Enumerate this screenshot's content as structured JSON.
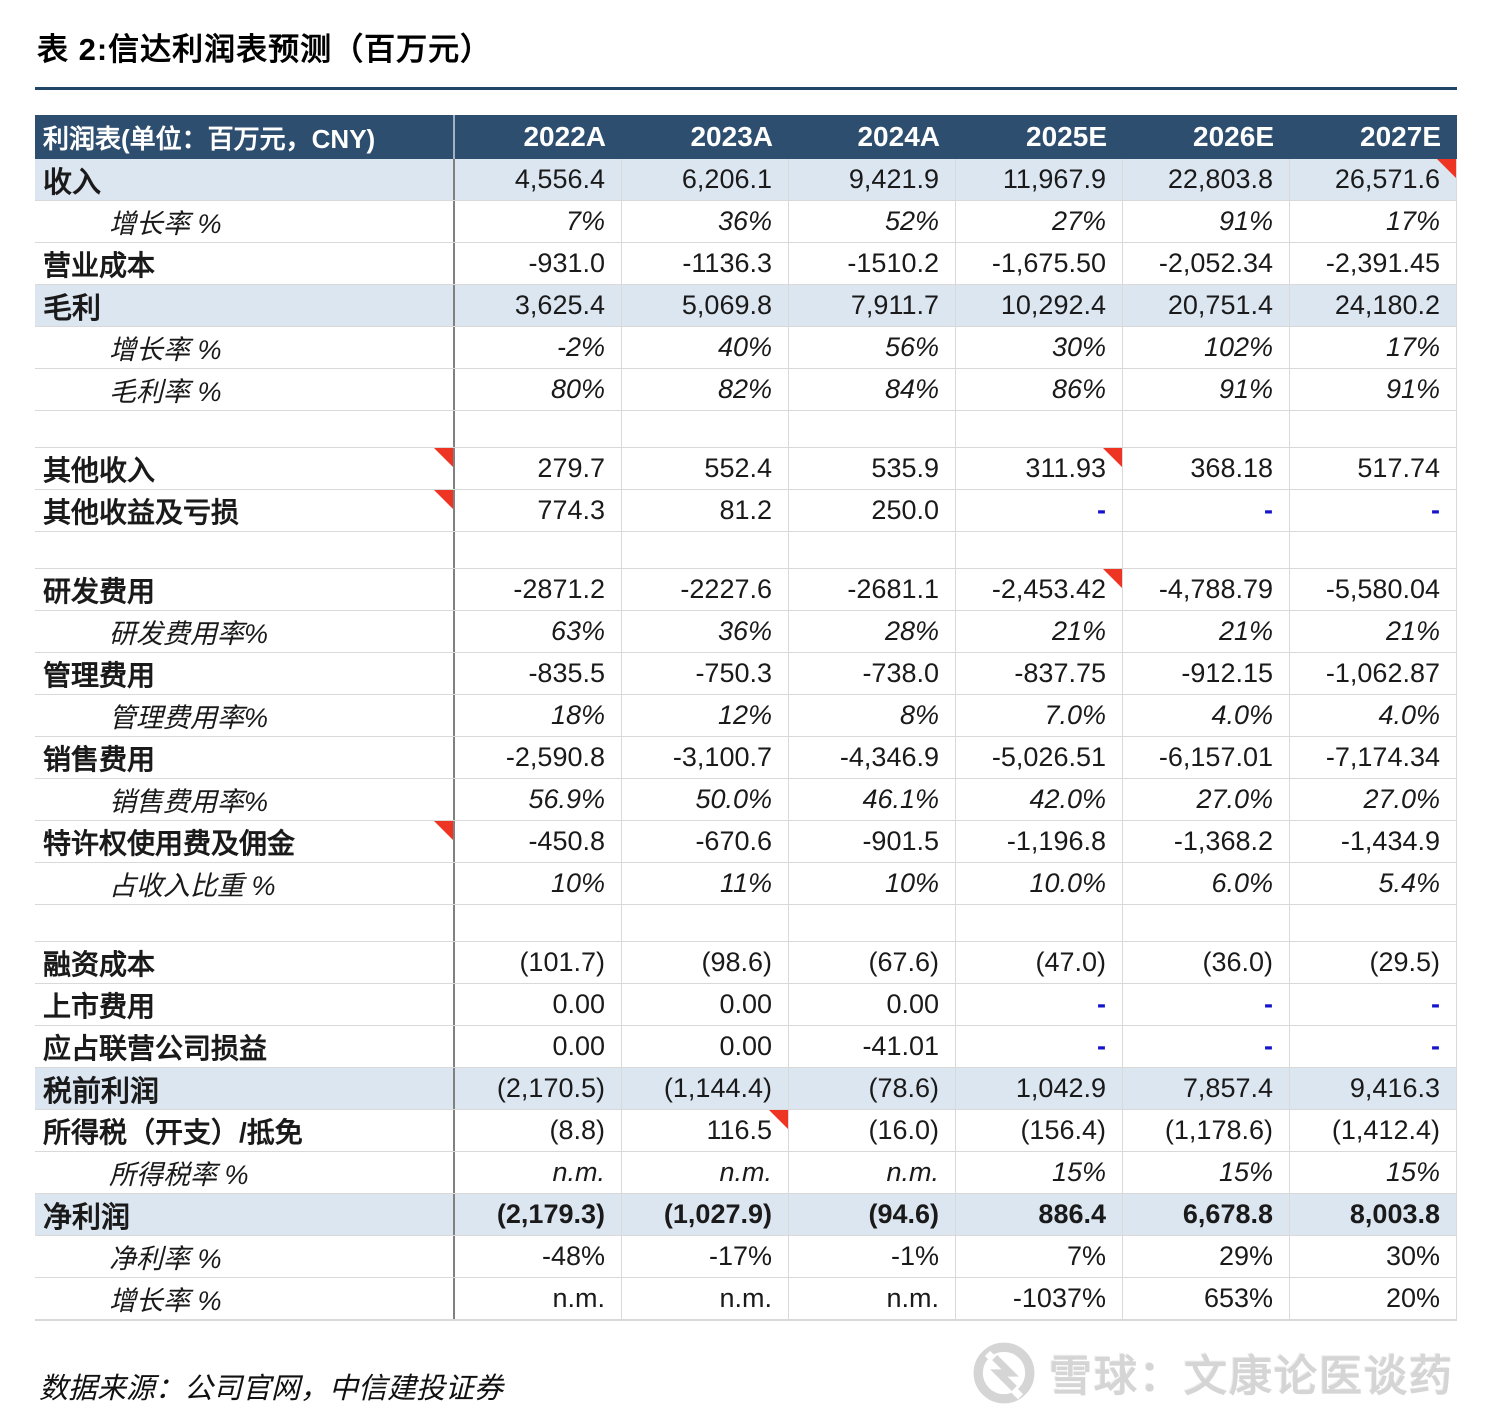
{
  "title": "表 2:信达利润表预测（百万元）",
  "source": "数据来源：公司官网，中信建投证券",
  "watermark": {
    "logo": "xueqiu-snowball-icon",
    "text": "雪球：文康论医谈药"
  },
  "colors": {
    "header-bg": "#2d4e6e",
    "highlight-bg": "#dce6f1",
    "grid-line": "#d9d9d9",
    "divider-line": "#808080",
    "title-rule": "#1f4666",
    "corner-red": "#ee3524",
    "dash-blue": "#1414cc",
    "text": "#1a1a1a"
  },
  "table": {
    "header": [
      "利润表(单位：百万元，CNY)",
      "2022A",
      "2023A",
      "2024A",
      "2025E",
      "2026E",
      "2027E"
    ],
    "rows": [
      {
        "label": "收入",
        "type": "highlight",
        "values": [
          "4,556.4",
          "6,206.1",
          "9,421.9",
          "11,967.9",
          "22,803.8",
          "26,571.6"
        ],
        "corner_cols": [
          5
        ]
      },
      {
        "label": "增长率 %",
        "type": "ratio",
        "value_italic": true,
        "values": [
          "7%",
          "36%",
          "52%",
          "27%",
          "91%",
          "17%"
        ]
      },
      {
        "label": "营业成本",
        "type": "main",
        "values": [
          "-931.0",
          "-1136.3",
          "-1510.2",
          "-1,675.50",
          "-2,052.34",
          "-2,391.45"
        ]
      },
      {
        "label": "毛利",
        "type": "highlight",
        "values": [
          "3,625.4",
          "5,069.8",
          "7,911.7",
          "10,292.4",
          "20,751.4",
          "24,180.2"
        ]
      },
      {
        "label": "增长率 %",
        "type": "ratio",
        "value_italic": true,
        "values": [
          "-2%",
          "40%",
          "56%",
          "30%",
          "102%",
          "17%"
        ]
      },
      {
        "label": "毛利率 %",
        "type": "ratio",
        "value_italic": true,
        "values": [
          "80%",
          "82%",
          "84%",
          "86%",
          "91%",
          "91%"
        ]
      },
      {
        "label": "",
        "type": "spacer",
        "values": [
          "",
          "",
          "",
          "",
          "",
          ""
        ]
      },
      {
        "label": "其他收入",
        "type": "main",
        "label_corner": true,
        "values": [
          "279.7",
          "552.4",
          "535.9",
          "311.93",
          "368.18",
          "517.74"
        ],
        "corner_cols": [
          3
        ]
      },
      {
        "label": "其他收益及亏损",
        "type": "main",
        "label_corner": true,
        "values": [
          "774.3",
          "81.2",
          "250.0",
          "-",
          "-",
          "-"
        ]
      },
      {
        "label": "",
        "type": "spacer",
        "values": [
          "",
          "",
          "",
          "",
          "",
          ""
        ]
      },
      {
        "label": "研发费用",
        "type": "main",
        "values": [
          "-2871.2",
          "-2227.6",
          "-2681.1",
          "-2,453.42",
          "-4,788.79",
          "-5,580.04"
        ],
        "corner_cols": [
          3
        ]
      },
      {
        "label": "研发费用率%",
        "type": "ratio",
        "value_italic": true,
        "values": [
          "63%",
          "36%",
          "28%",
          "21%",
          "21%",
          "21%"
        ]
      },
      {
        "label": "管理费用",
        "type": "main",
        "values": [
          "-835.5",
          "-750.3",
          "-738.0",
          "-837.75",
          "-912.15",
          "-1,062.87"
        ]
      },
      {
        "label": "管理费用率%",
        "type": "ratio",
        "value_italic": true,
        "values": [
          "18%",
          "12%",
          "8%",
          "7.0%",
          "4.0%",
          "4.0%"
        ]
      },
      {
        "label": "销售费用",
        "type": "main",
        "values": [
          "-2,590.8",
          "-3,100.7",
          "-4,346.9",
          "-5,026.51",
          "-6,157.01",
          "-7,174.34"
        ]
      },
      {
        "label": "销售费用率%",
        "type": "ratio",
        "value_italic": true,
        "values": [
          "56.9%",
          "50.0%",
          "46.1%",
          "42.0%",
          "27.0%",
          "27.0%"
        ]
      },
      {
        "label": "特许权使用费及佣金",
        "type": "main",
        "label_corner": true,
        "values": [
          "-450.8",
          "-670.6",
          "-901.5",
          "-1,196.8",
          "-1,368.2",
          "-1,434.9"
        ]
      },
      {
        "label": "占收入比重 %",
        "type": "ratio",
        "value_italic": true,
        "values": [
          "10%",
          "11%",
          "10%",
          "10.0%",
          "6.0%",
          "5.4%"
        ]
      },
      {
        "label": "",
        "type": "spacer",
        "values": [
          "",
          "",
          "",
          "",
          "",
          ""
        ]
      },
      {
        "label": "融资成本",
        "type": "main",
        "values": [
          "(101.7)",
          "(98.6)",
          "(67.6)",
          "(47.0)",
          "(36.0)",
          "(29.5)"
        ]
      },
      {
        "label": "上市费用",
        "type": "main",
        "values": [
          "0.00",
          "0.00",
          "0.00",
          "-",
          "-",
          "-"
        ]
      },
      {
        "label": "应占联营公司损益",
        "type": "main",
        "values": [
          "0.00",
          "0.00",
          "-41.01",
          "-",
          "-",
          "-"
        ]
      },
      {
        "label": "税前利润",
        "type": "highlight",
        "values": [
          "(2,170.5)",
          "(1,144.4)",
          "(78.6)",
          "1,042.9",
          "7,857.4",
          "9,416.3"
        ]
      },
      {
        "label": "所得税（开支）/抵免",
        "type": "main",
        "values": [
          "(8.8)",
          "116.5",
          "(16.0)",
          "(156.4)",
          "(1,178.6)",
          "(1,412.4)"
        ],
        "corner_cols": [
          1
        ]
      },
      {
        "label": "所得税率 %",
        "type": "ratio",
        "value_italic": true,
        "values": [
          "n.m.",
          "n.m.",
          "n.m.",
          "15%",
          "15%",
          "15%"
        ]
      },
      {
        "label": "净利润",
        "type": "highlight",
        "value_bold": true,
        "values": [
          "(2,179.3)",
          "(1,027.9)",
          "(94.6)",
          "886.4",
          "6,678.8",
          "8,003.8"
        ]
      },
      {
        "label": "净利率 %",
        "type": "ratio",
        "values": [
          "-48%",
          "-17%",
          "-1%",
          "7%",
          "29%",
          "30%"
        ]
      },
      {
        "label": "增长率 %",
        "type": "ratio",
        "values": [
          "n.m.",
          "n.m.",
          "n.m.",
          "-1037%",
          "653%",
          "20%"
        ]
      }
    ]
  }
}
